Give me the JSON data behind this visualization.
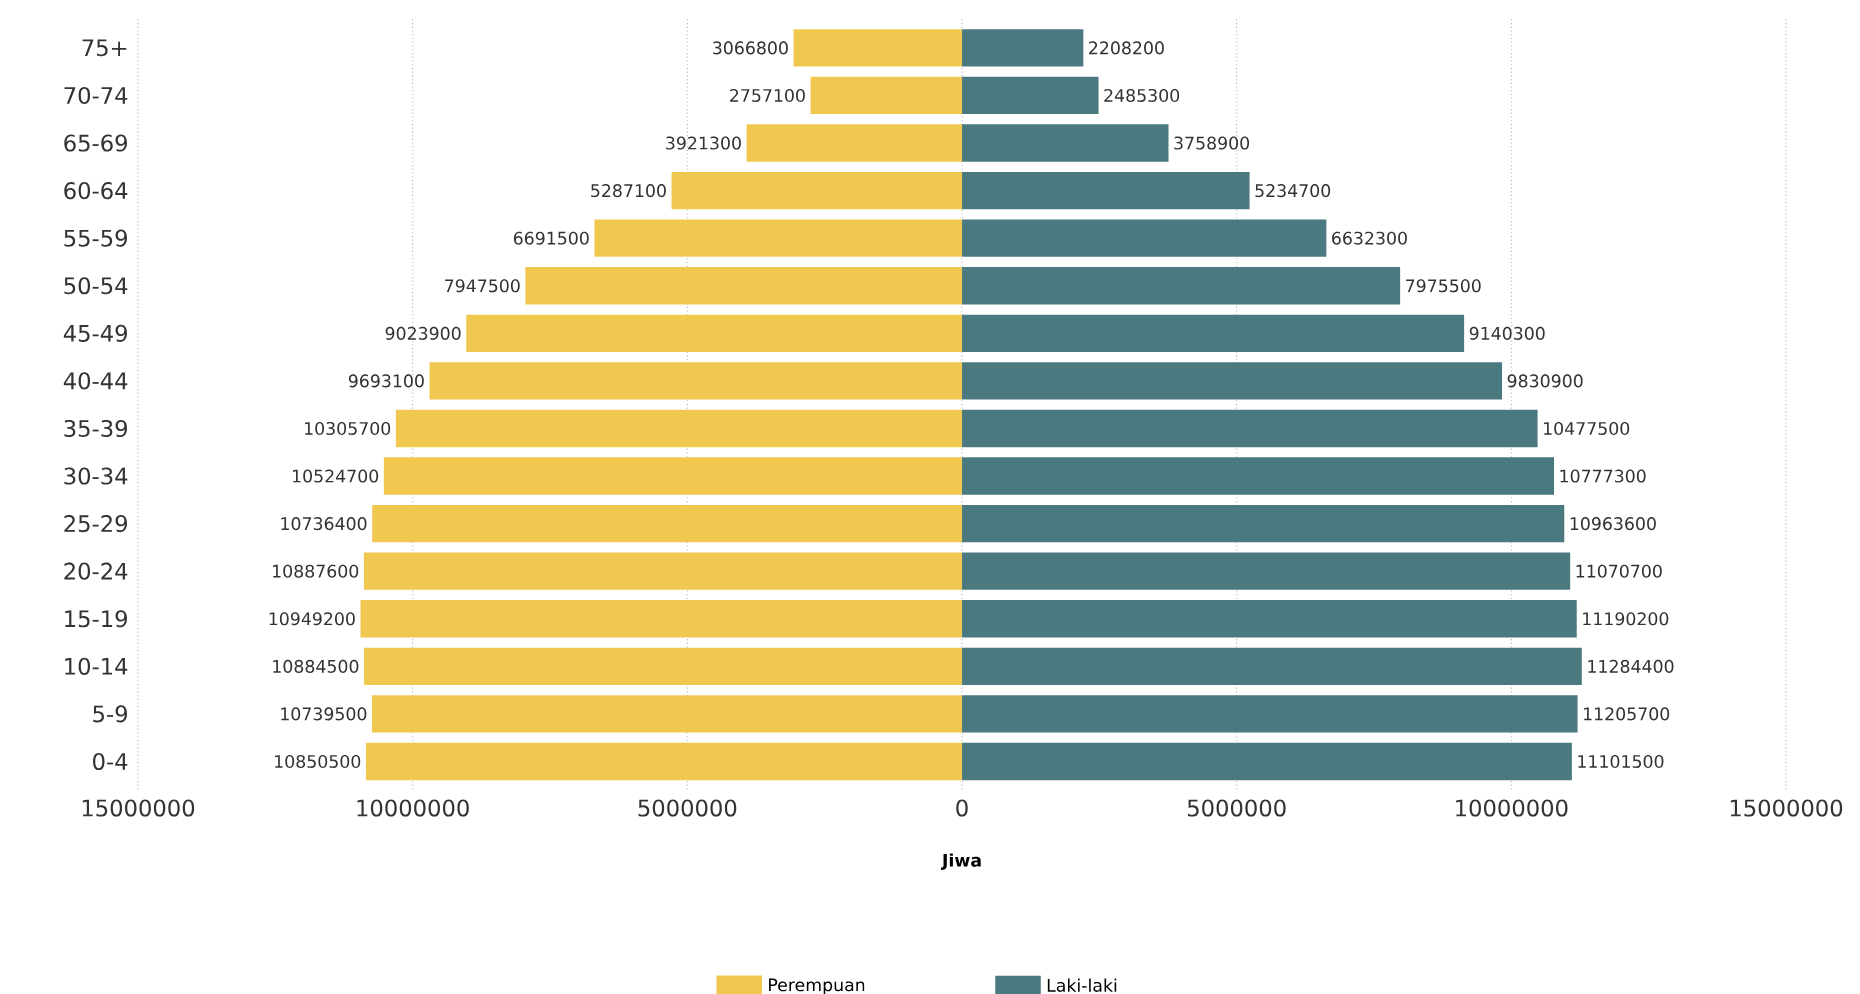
{
  "chart_data": [
    {
      "type": "bar",
      "orientation": "horizontal",
      "xlabel": "Jiwa",
      "categories": [
        "75+",
        "70-74",
        "65-69",
        "60-64",
        "55-59",
        "50-54",
        "45-49",
        "40-44",
        "35-39",
        "30-34",
        "25-29",
        "20-24",
        "15-19",
        "10-14",
        "5-9",
        "0-4"
      ],
      "series": [
        {
          "name": "Perempuan",
          "color": "#f0c850",
          "values": [
            3066800,
            2757100,
            3921300,
            5287100,
            6691500,
            7947500,
            9023900,
            9693100,
            10305700,
            10524700,
            10736400,
            10887600,
            10949200,
            10884500,
            10739500,
            10850500
          ]
        }
      ],
      "xlim": [
        15000000,
        0
      ],
      "xticks": [
        15000000,
        10000000,
        5000000,
        0
      ],
      "data_labels": true,
      "grid": "x",
      "legend": "bottom right"
    },
    {
      "type": "bar",
      "orientation": "horizontal",
      "categories": [
        null,
        null,
        null,
        null,
        null,
        null,
        null,
        null,
        null,
        null,
        null,
        null,
        null,
        null,
        null,
        null
      ],
      "series": [
        {
          "name": "Laki-laki",
          "color": "#4a7a80",
          "values": [
            2208200,
            2485300,
            3758900,
            5234700,
            6632300,
            7975500,
            9140300,
            9830900,
            10477500,
            10777300,
            10963600,
            11070700,
            11190200,
            11284400,
            11205700,
            11101500
          ]
        }
      ],
      "xlim": [
        0,
        15000000
      ],
      "xticks": [
        5000000,
        10000000,
        15000000
      ],
      "data_labels": true,
      "grid": "x",
      "legend": "bottom left",
      "tick_labels": "x"
    }
  ]
}
